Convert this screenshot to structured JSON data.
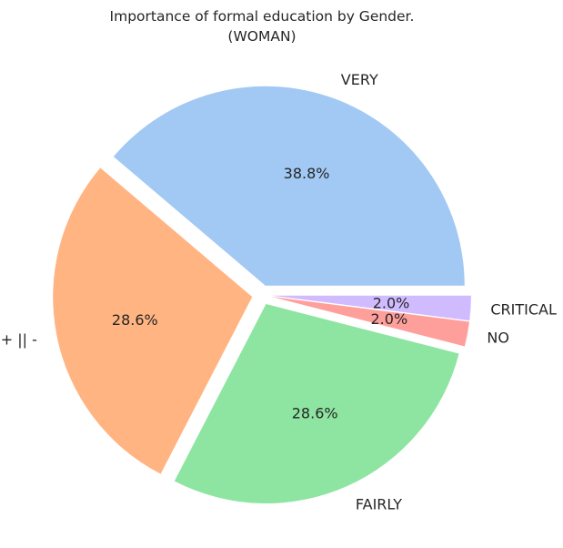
{
  "chart_data": {
    "type": "pie",
    "title": "Importance of formal education by Gender.",
    "subtitle": "(WOMAN)",
    "categories": [
      "VERY",
      "+ || -",
      "FAIRLY",
      "NO",
      "CRITICAL"
    ],
    "values": [
      38.8,
      28.6,
      28.6,
      2.0,
      2.0
    ],
    "value_labels": [
      "38.8%",
      "28.6%",
      "28.6%",
      "2.0%",
      "2.0%"
    ],
    "colors": [
      "#a1c9f4",
      "#ffb482",
      "#8de5a1",
      "#ff9f9b",
      "#d0bbff"
    ],
    "start_angle_deg": 0,
    "direction": "counterclockwise",
    "exploded": true,
    "legend": "none"
  }
}
